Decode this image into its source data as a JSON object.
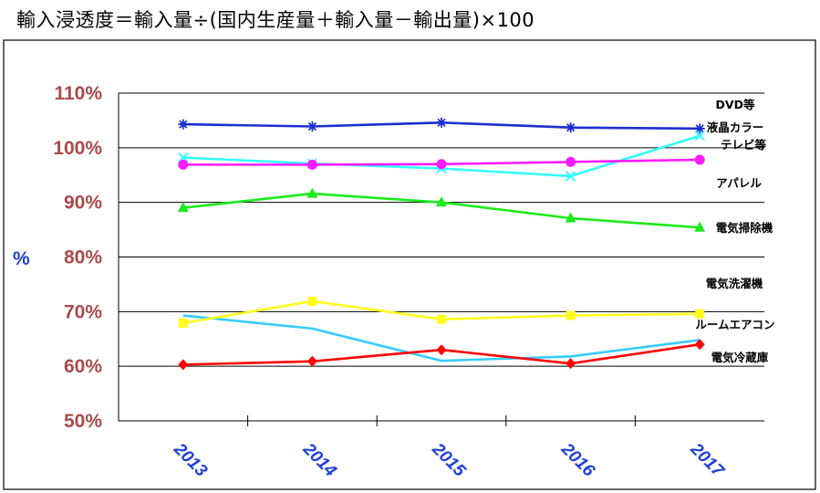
{
  "title": "輸入浸透度＝輸入量÷(国内生産量＋輸入量－輸出量)×100",
  "chart_data": {
    "type": "line",
    "title": "輸入浸透度＝輸入量÷(国内生産量＋輸入量－輸出量)×100",
    "ylabel": "%",
    "xlabel": "",
    "categories": [
      "2013",
      "2014",
      "2015",
      "2016",
      "2017"
    ],
    "ylim": [
      50,
      110
    ],
    "yticks": [
      "50%",
      "60%",
      "70%",
      "80%",
      "90%",
      "100%",
      "110%"
    ],
    "grid": "horizontal",
    "legend": "direct labels at right end of lines",
    "series": [
      {
        "name": "DVD等",
        "color": "#1c2fd0",
        "marker": "asterisk",
        "values": [
          104.3,
          103.9,
          104.6,
          103.7,
          103.5
        ]
      },
      {
        "name": "液晶カラーテレビ等",
        "color": "#33ffff",
        "marker": "x",
        "values": [
          98.2,
          97.1,
          96.2,
          94.8,
          102.2
        ]
      },
      {
        "name": "アパレル",
        "color": "#ff1aff",
        "marker": "circle",
        "values": [
          96.9,
          96.9,
          97.0,
          97.4,
          97.8
        ]
      },
      {
        "name": "電気掃除機",
        "color": "#1aeb1a",
        "marker": "triangle",
        "values": [
          89.0,
          91.6,
          90.0,
          87.1,
          85.4
        ]
      },
      {
        "name": "電気洗濯機",
        "color": "#33ccff",
        "marker": "none",
        "values": [
          69.3,
          66.9,
          61.0,
          61.8,
          64.8
        ]
      },
      {
        "name": "ルームエアコン",
        "color": "#ffff1a",
        "marker": "square",
        "values": [
          67.9,
          71.9,
          68.6,
          69.3,
          69.6
        ]
      },
      {
        "name": "電気冷蔵庫",
        "color": "#ff0000",
        "marker": "diamond",
        "values": [
          60.3,
          60.9,
          63.0,
          60.5,
          64.0
        ]
      }
    ],
    "series_labels": [
      {
        "lines": [
          "DVD等"
        ],
        "series": "DVD等"
      },
      {
        "lines": [
          "液晶カラー",
          "テレビ等"
        ],
        "series": "液晶カラーテレビ等"
      },
      {
        "lines": [
          "アパレル"
        ],
        "series": "アパレル"
      },
      {
        "lines": [
          "電気掃除機"
        ],
        "series": "電気掃除機"
      },
      {
        "lines": [
          "電気洗濯機"
        ],
        "series": "電気洗濯機"
      },
      {
        "lines": [
          "ルームエアコン"
        ],
        "series": "ルームエアコン"
      },
      {
        "lines": [
          "電気冷蔵庫"
        ],
        "series": "電気冷蔵庫"
      }
    ]
  }
}
